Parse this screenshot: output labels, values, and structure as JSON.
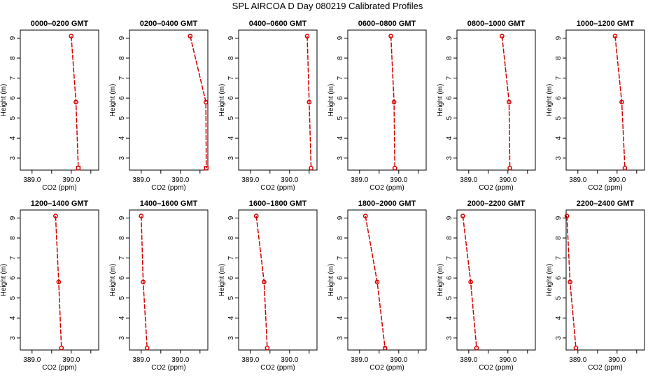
{
  "title": "SPL AIRCOA D  Day 080219  Calibrated Profiles",
  "colors": {
    "series": "#d40000",
    "axis": "#000000"
  },
  "chart_data": [
    {
      "type": "line",
      "title": "0000–0200 GMT",
      "xlabel": "CO2 (ppm)",
      "ylabel": "Height (m)",
      "xlim": [
        388.7,
        390.7
      ],
      "ylim": [
        2.4,
        9.4
      ],
      "xticks": [
        "389.0",
        "390.0"
      ],
      "yticks": [
        "3",
        "4",
        "5",
        "6",
        "7",
        "8",
        "9"
      ],
      "x": [
        390.0,
        390.12,
        390.18
      ],
      "y": [
        9.1,
        5.8,
        2.5
      ]
    },
    {
      "type": "line",
      "title": "0200–0400 GMT",
      "xlabel": "CO2 (ppm)",
      "ylabel": "Height (m)",
      "xlim": [
        388.7,
        390.7
      ],
      "ylim": [
        2.4,
        9.4
      ],
      "xticks": [
        "389.0",
        "390.0"
      ],
      "yticks": [
        "3",
        "4",
        "5",
        "6",
        "7",
        "8",
        "9"
      ],
      "x": [
        390.25,
        390.65,
        390.66
      ],
      "y": [
        9.1,
        5.8,
        2.5
      ]
    },
    {
      "type": "line",
      "title": "0400–0600 GMT",
      "xlabel": "CO2 (ppm)",
      "ylabel": "Height (m)",
      "xlim": [
        388.7,
        390.7
      ],
      "ylim": [
        2.4,
        9.4
      ],
      "xticks": [
        "389.0",
        "390.0"
      ],
      "yticks": [
        "3",
        "4",
        "5",
        "6",
        "7",
        "8",
        "9"
      ],
      "x": [
        390.45,
        390.5,
        390.55
      ],
      "y": [
        9.1,
        5.8,
        2.5
      ]
    },
    {
      "type": "line",
      "title": "0600–0800 GMT",
      "xlabel": "CO2 (ppm)",
      "ylabel": "Height (m)",
      "xlim": [
        388.7,
        390.7
      ],
      "ylim": [
        2.4,
        9.4
      ],
      "xticks": [
        "389.0",
        "390.0"
      ],
      "yticks": [
        "3",
        "4",
        "5",
        "6",
        "7",
        "8",
        "9"
      ],
      "x": [
        389.8,
        389.88,
        389.9
      ],
      "y": [
        9.1,
        5.8,
        2.5
      ]
    },
    {
      "type": "line",
      "title": "0800–1000 GMT",
      "xlabel": "CO2 (ppm)",
      "ylabel": "Height (m)",
      "xlim": [
        388.7,
        390.7
      ],
      "ylim": [
        2.4,
        9.4
      ],
      "xticks": [
        "389.0",
        "390.0"
      ],
      "yticks": [
        "3",
        "4",
        "5",
        "6",
        "7",
        "8",
        "9"
      ],
      "x": [
        389.85,
        390.03,
        390.05
      ],
      "y": [
        9.1,
        5.8,
        2.5
      ]
    },
    {
      "type": "line",
      "title": "1000–1200 GMT",
      "xlabel": "CO2 (ppm)",
      "ylabel": "Height (m)",
      "xlim": [
        388.7,
        390.7
      ],
      "ylim": [
        2.4,
        9.4
      ],
      "xticks": [
        "389.0",
        "390.0"
      ],
      "yticks": [
        "3",
        "4",
        "5",
        "6",
        "7",
        "8",
        "9"
      ],
      "x": [
        389.95,
        390.12,
        390.2
      ],
      "y": [
        9.1,
        5.8,
        2.5
      ]
    },
    {
      "type": "line",
      "title": "1200–1400 GMT",
      "xlabel": "CO2 (ppm)",
      "ylabel": "Height (m)",
      "xlim": [
        388.7,
        390.7
      ],
      "ylim": [
        2.4,
        9.4
      ],
      "xticks": [
        "389.0",
        "390.0"
      ],
      "yticks": [
        "3",
        "4",
        "5",
        "6",
        "7",
        "8",
        "9"
      ],
      "x": [
        389.6,
        389.68,
        389.75
      ],
      "y": [
        9.1,
        5.8,
        2.5
      ]
    },
    {
      "type": "line",
      "title": "1400–1600 GMT",
      "xlabel": "CO2 (ppm)",
      "ylabel": "Height (m)",
      "xlim": [
        388.7,
        390.7
      ],
      "ylim": [
        2.4,
        9.4
      ],
      "xticks": [
        "389.0",
        "390.0"
      ],
      "yticks": [
        "3",
        "4",
        "5",
        "6",
        "7",
        "8",
        "9"
      ],
      "x": [
        389.0,
        389.05,
        389.15
      ],
      "y": [
        9.1,
        5.8,
        2.5
      ]
    },
    {
      "type": "line",
      "title": "1600–1800 GMT",
      "xlabel": "CO2 (ppm)",
      "ylabel": "Height (m)",
      "xlim": [
        388.7,
        390.7
      ],
      "ylim": [
        2.4,
        9.4
      ],
      "xticks": [
        "389.0",
        "390.0"
      ],
      "yticks": [
        "3",
        "4",
        "5",
        "6",
        "7",
        "8",
        "9"
      ],
      "x": [
        389.15,
        389.35,
        389.43
      ],
      "y": [
        9.1,
        5.8,
        2.5
      ]
    },
    {
      "type": "line",
      "title": "1800–2000 GMT",
      "xlabel": "CO2 (ppm)",
      "ylabel": "Height (m)",
      "xlim": [
        388.7,
        390.7
      ],
      "ylim": [
        2.4,
        9.4
      ],
      "xticks": [
        "389.0",
        "390.0"
      ],
      "yticks": [
        "3",
        "4",
        "5",
        "6",
        "7",
        "8",
        "9"
      ],
      "x": [
        389.15,
        389.45,
        389.65
      ],
      "y": [
        9.1,
        5.8,
        2.5
      ]
    },
    {
      "type": "line",
      "title": "2000–2200 GMT",
      "xlabel": "CO2 (ppm)",
      "ylabel": "Height (m)",
      "xlim": [
        388.7,
        390.7
      ],
      "ylim": [
        2.4,
        9.4
      ],
      "xticks": [
        "389.0",
        "390.0"
      ],
      "yticks": [
        "3",
        "4",
        "5",
        "6",
        "7",
        "8",
        "9"
      ],
      "x": [
        388.85,
        389.05,
        389.2
      ],
      "y": [
        9.1,
        5.8,
        2.5
      ]
    },
    {
      "type": "line",
      "title": "2200–2400 GMT",
      "xlabel": "CO2 (ppm)",
      "ylabel": "Height (m)",
      "xlim": [
        388.7,
        390.7
      ],
      "ylim": [
        2.4,
        9.4
      ],
      "xticks": [
        "389.0",
        "390.0"
      ],
      "yticks": [
        "3",
        "4",
        "5",
        "6",
        "7",
        "8",
        "9"
      ],
      "x": [
        388.72,
        388.8,
        388.95
      ],
      "y": [
        9.1,
        5.8,
        2.5
      ]
    }
  ]
}
